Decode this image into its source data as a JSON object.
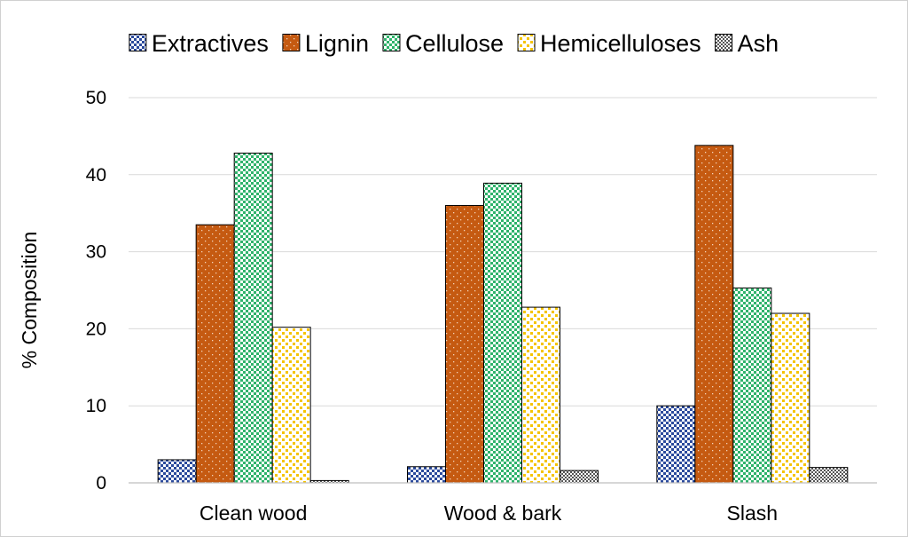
{
  "chart_data": {
    "type": "bar",
    "title": "",
    "xlabel": "",
    "ylabel": "% Composition",
    "ylim": [
      0,
      50
    ],
    "yticks": [
      0,
      10,
      20,
      30,
      40,
      50
    ],
    "grid": true,
    "legend_position": "top",
    "categories": [
      "Clean wood",
      "Wood & bark",
      "Slash"
    ],
    "series": [
      {
        "name": "Extractives",
        "values": [
          3.0,
          2.1,
          10.0
        ],
        "color": "#2b4a9c",
        "pattern": "checker"
      },
      {
        "name": "Lignin",
        "values": [
          33.5,
          36.0,
          43.8
        ],
        "color": "#c55a11",
        "pattern": "dots"
      },
      {
        "name": "Cellulose",
        "values": [
          42.8,
          38.9,
          25.3
        ],
        "color": "#2fb36b",
        "pattern": "checker"
      },
      {
        "name": "Hemicelluloses",
        "values": [
          20.2,
          22.8,
          22.0
        ],
        "color": "#f5c400",
        "pattern": "dots"
      },
      {
        "name": "Ash",
        "values": [
          0.3,
          1.6,
          2.0
        ],
        "color": "#444444",
        "pattern": "fine"
      }
    ]
  }
}
